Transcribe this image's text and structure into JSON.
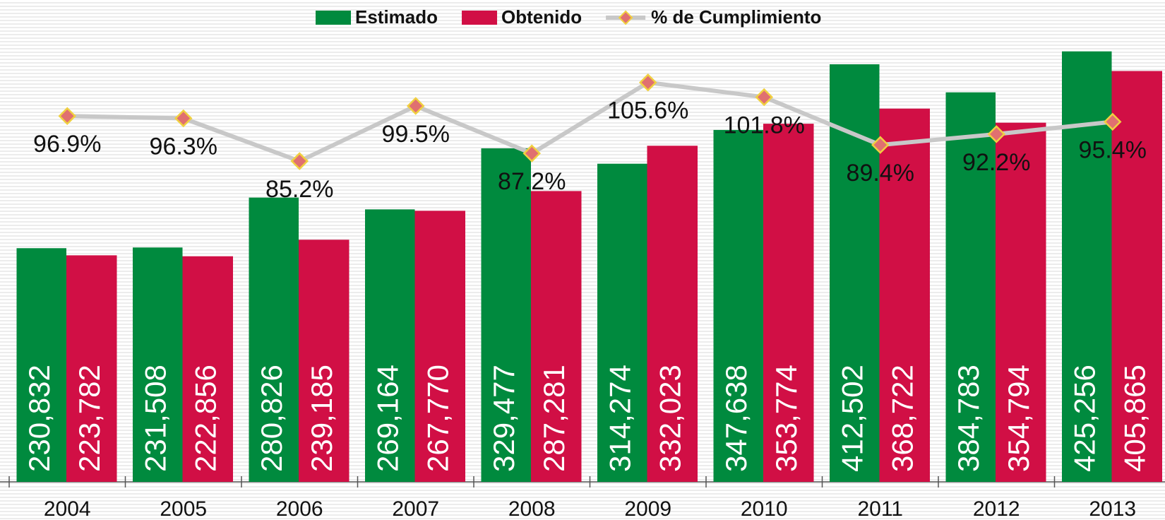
{
  "chart_data": {
    "type": "bar_line",
    "categories": [
      "2004",
      "2005",
      "2006",
      "2007",
      "2008",
      "2009",
      "2010",
      "2011",
      "2012",
      "2013"
    ],
    "series": [
      {
        "name": "Estimado",
        "color": "#008a3e",
        "values": [
          230832,
          231508,
          280826,
          269164,
          329477,
          314274,
          347638,
          412502,
          384783,
          425256
        ],
        "value_labels": [
          "230,832",
          "231,508",
          "280,826",
          "269,164",
          "329,477",
          "314,274",
          "347,638",
          "412,502",
          "384,783",
          "425,256"
        ]
      },
      {
        "name": "Obtenido",
        "color": "#d10f45",
        "values": [
          223782,
          222856,
          239185,
          267770,
          287281,
          332023,
          353774,
          368722,
          354794,
          405865
        ],
        "value_labels": [
          "223,782",
          "222,856",
          "239,185",
          "267,770",
          "287,281",
          "332,023",
          "353,774",
          "368,722",
          "354,794",
          "405,865"
        ]
      },
      {
        "name": "% de Cumplimiento",
        "type": "line",
        "axis": "y2",
        "color": "#c8c8c8",
        "marker_color": "#e07070",
        "marker_edge": "#f0d040",
        "values": [
          96.9,
          96.3,
          85.2,
          99.5,
          87.2,
          105.6,
          101.8,
          89.4,
          92.2,
          95.4
        ],
        "value_labels": [
          "96.9%",
          "96.3%",
          "85.2%",
          "99.5%",
          "87.2%",
          "105.6%",
          "101.8%",
          "89.4%",
          "92.2%",
          "95.4%"
        ]
      }
    ],
    "ylim": [
      0,
      476000
    ],
    "y2lim": [
      2,
      127
    ],
    "legend": "top"
  }
}
